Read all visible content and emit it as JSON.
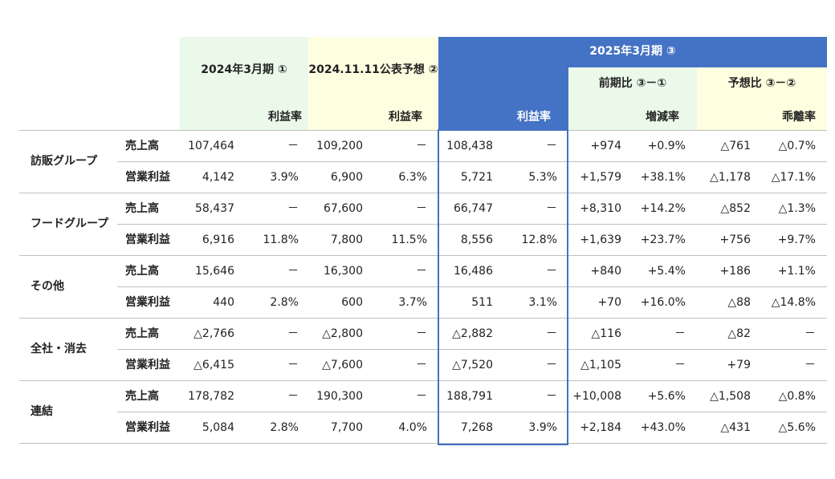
{
  "unit_label": "",
  "headers": {
    "col1_title": "2024年3月期 ①",
    "col2_title": "2024.11.11公表予想 ②",
    "col3_title": "2025年3月期 ③",
    "sub_prev": "前期比 ③－①",
    "sub_forecast": "予想比 ③－②",
    "margin": "利益率",
    "growth": "増減率",
    "deviation": "乖離率"
  },
  "rows": [
    {
      "segment": "訪販グループ",
      "metric": "売上高",
      "v": [
        "107,464",
        "－",
        "109,200",
        "－",
        "108,438",
        "－",
        "+974",
        "+0.9%",
        "△761",
        "△0.7%"
      ]
    },
    {
      "segment": "",
      "metric": "営業利益",
      "v": [
        "4,142",
        "3.9%",
        "6,900",
        "6.3%",
        "5,721",
        "5.3%",
        "+1,579",
        "+38.1%",
        "△1,178",
        "△17.1%"
      ]
    },
    {
      "segment": "フードグループ",
      "metric": "売上高",
      "v": [
        "58,437",
        "－",
        "67,600",
        "－",
        "66,747",
        "－",
        "+8,310",
        "+14.2%",
        "△852",
        "△1.3%"
      ]
    },
    {
      "segment": "",
      "metric": "営業利益",
      "v": [
        "6,916",
        "11.8%",
        "7,800",
        "11.5%",
        "8,556",
        "12.8%",
        "+1,639",
        "+23.7%",
        "+756",
        "+9.7%"
      ]
    },
    {
      "segment": "その他",
      "metric": "売上高",
      "v": [
        "15,646",
        "－",
        "16,300",
        "－",
        "16,486",
        "－",
        "+840",
        "+5.4%",
        "+186",
        "+1.1%"
      ]
    },
    {
      "segment": "",
      "metric": "営業利益",
      "v": [
        "440",
        "2.8%",
        "600",
        "3.7%",
        "511",
        "3.1%",
        "+70",
        "+16.0%",
        "△88",
        "△14.8%"
      ]
    },
    {
      "segment": "全社・消去",
      "metric": "売上高",
      "v": [
        "△2,766",
        "－",
        "△2,800",
        "－",
        "△2,882",
        "－",
        "△116",
        "－",
        "△82",
        "－"
      ]
    },
    {
      "segment": "",
      "metric": "営業利益",
      "v": [
        "△6,415",
        "－",
        "△7,600",
        "－",
        "△7,520",
        "－",
        "△1,105",
        "－",
        "+79",
        "－"
      ]
    },
    {
      "segment": "連結",
      "metric": "売上高",
      "v": [
        "178,782",
        "－",
        "190,300",
        "－",
        "188,791",
        "－",
        "+10,008",
        "+5.6%",
        "△1,508",
        "△0.8%"
      ]
    },
    {
      "segment": "",
      "metric": "営業利益",
      "v": [
        "5,084",
        "2.8%",
        "7,700",
        "4.0%",
        "7,268",
        "3.9%",
        "+2,184",
        "+43.0%",
        "△431",
        "△5.6%"
      ]
    }
  ]
}
